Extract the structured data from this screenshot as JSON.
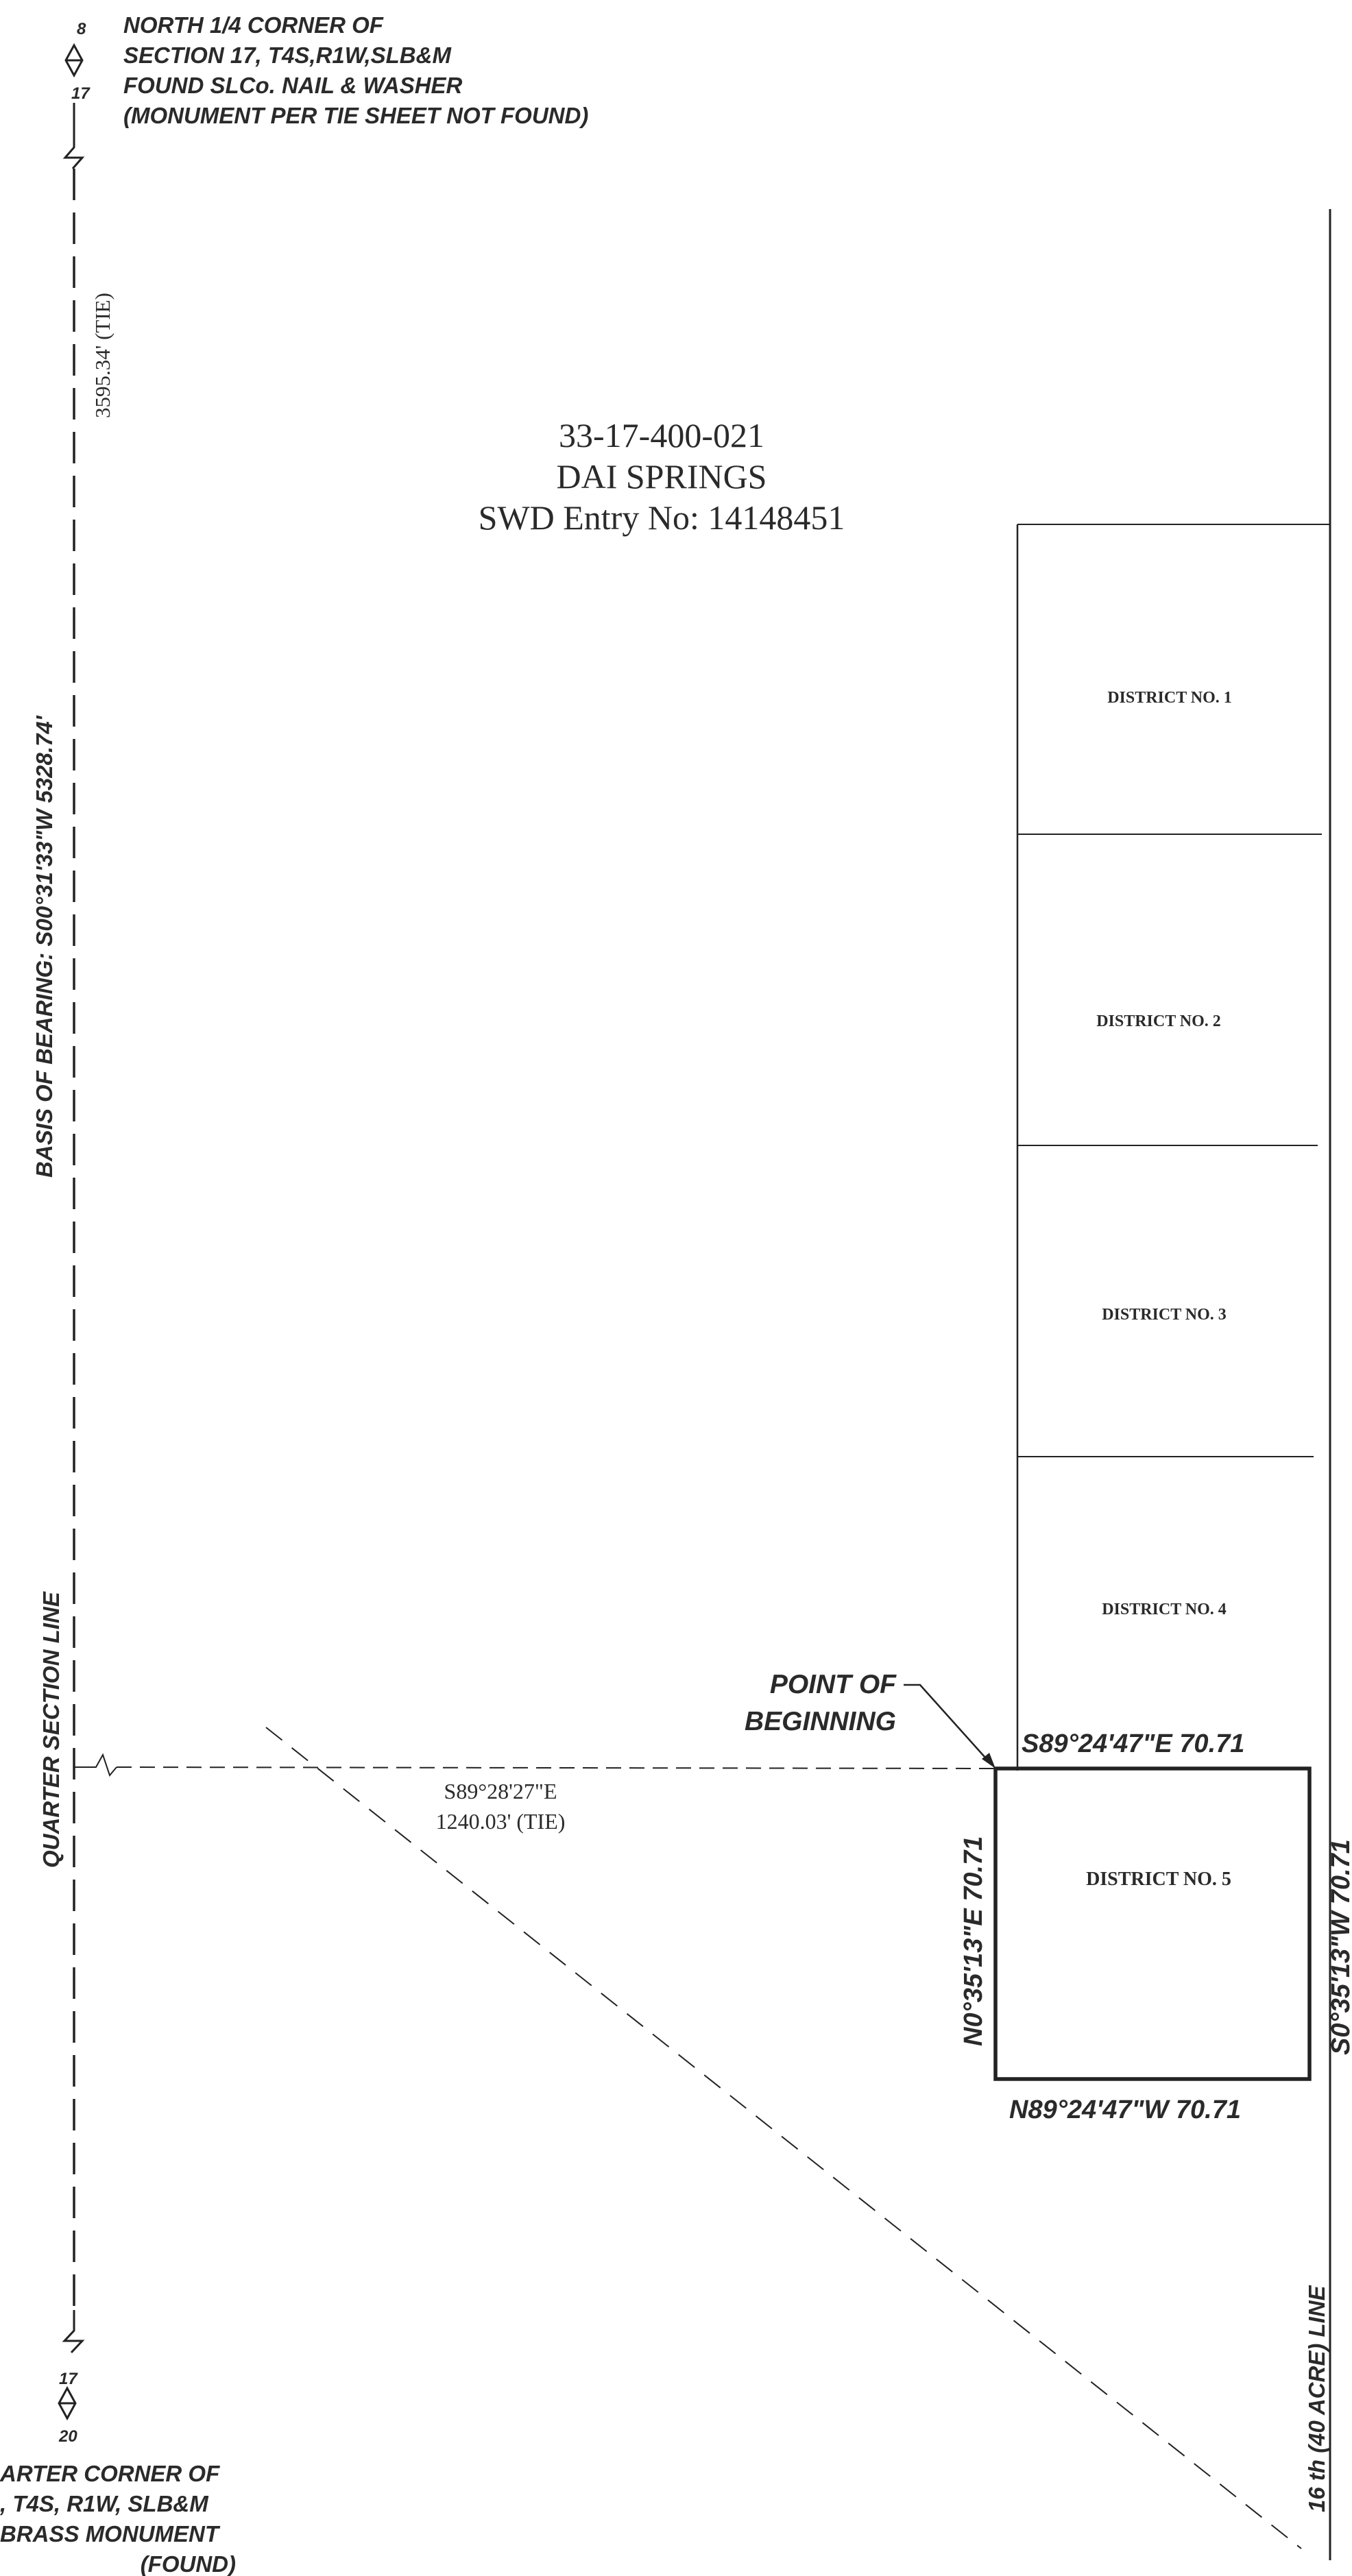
{
  "north_corner": {
    "sec_top": "8",
    "sec_bottom": "17",
    "lines": [
      "NORTH 1/4 CORNER OF",
      "SECTION 17, T4S,R1W,SLB&M",
      "FOUND SLCo. NAIL & WASHER",
      "(MONUMENT PER TIE SHEET NOT FOUND)"
    ]
  },
  "south_corner": {
    "sec_top": "17",
    "sec_bottom": "20",
    "lines": [
      "ARTER CORNER OF",
      ", T4S, R1W, SLB&M",
      "BRASS MONUMENT",
      "(FOUND)"
    ]
  },
  "tie_north": "3595.34' (TIE)",
  "basis_of_bearing": "BASIS OF BEARING: S00°31'33\"W  5328.74'",
  "quarter_section_line": "QUARTER SECTION LINE",
  "parcel": {
    "number": "33-17-400-021",
    "name": "DAI SPRINGS",
    "entry": "SWD Entry No: 14148451"
  },
  "districts": [
    "DISTRICT NO. 1",
    "DISTRICT NO. 2",
    "DISTRICT NO. 3",
    "DISTRICT NO. 4",
    "DISTRICT NO. 5"
  ],
  "pob": {
    "line1": "POINT OF",
    "line2": "BEGINNING"
  },
  "tie_east": {
    "bearing": "S89°28'27\"E",
    "distance": "1240.03' (TIE)"
  },
  "boundary": {
    "north": "S89°24'47\"E  70.71",
    "east": "S0°35'13\"W  70.71",
    "south": "N89°24'47\"W  70.71",
    "west": "N0°35'13\"E  70.71"
  },
  "sixteenth_line": "16 th (40 ACRE) LINE"
}
